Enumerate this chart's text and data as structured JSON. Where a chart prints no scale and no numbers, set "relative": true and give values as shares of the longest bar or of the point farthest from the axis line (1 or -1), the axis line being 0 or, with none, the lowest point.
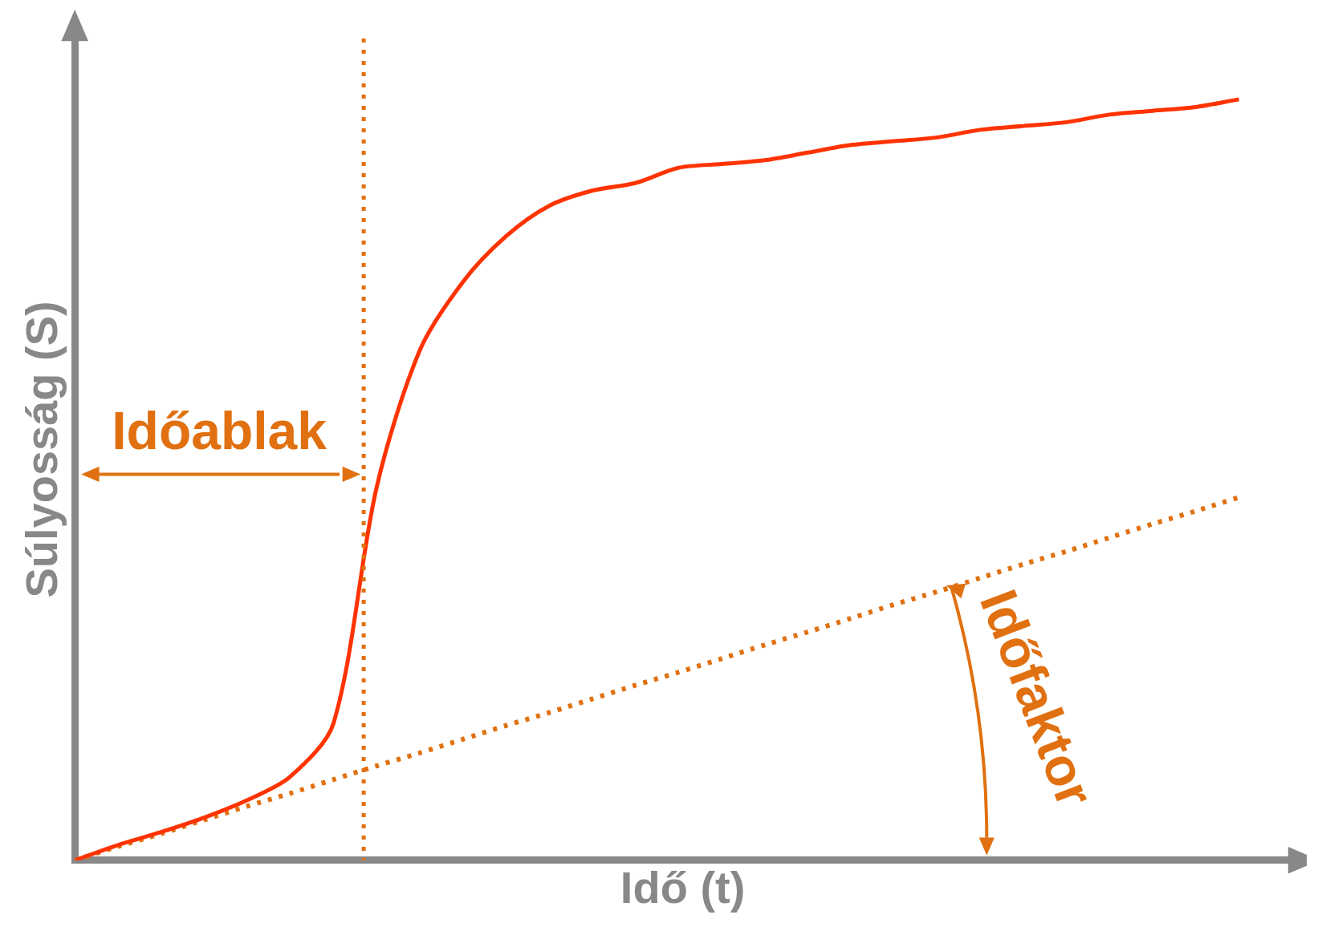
{
  "chart_data": {
    "type": "line",
    "relative": true,
    "xlabel": "Idő (t)",
    "ylabel": "Súlyosság (S)",
    "grid": false,
    "legend": false,
    "marker": "none",
    "categories": [
      null,
      null,
      null,
      null,
      null,
      null,
      null,
      null,
      null,
      null,
      null,
      null,
      null,
      null,
      null,
      null,
      null,
      null,
      null,
      null,
      null,
      null,
      null,
      null,
      null,
      null,
      null,
      null
    ],
    "series": [
      {
        "color": "#ff3300",
        "line_style": "solid",
        "values": [
          0,
          0.02,
          0.037,
          0.056,
          0.079,
          0.11,
          0.18,
          0.49,
          0.67,
          0.76,
          0.82,
          0.86,
          0.88,
          0.89,
          0.91,
          0.915,
          0.92,
          0.93,
          0.94,
          0.945,
          0.95,
          0.96,
          0.965,
          0.97,
          0.98,
          0.985,
          0.99,
          1
        ]
      },
      {
        "color": "#e07010",
        "line_style": "dotted",
        "values": [
          0,
          0.018,
          0.035,
          0.053,
          0.071,
          0.088,
          0.106,
          0.124,
          0.141,
          0.159,
          0.177,
          0.194,
          0.212,
          0.23,
          0.247,
          0.265,
          0.283,
          0.3,
          0.318,
          0.336,
          0.353,
          0.371,
          0.389,
          0.406,
          0.424,
          0.442,
          0.459,
          0.477
        ]
      }
    ],
    "annotations": [
      "Időablak",
      "Időfaktor"
    ]
  }
}
